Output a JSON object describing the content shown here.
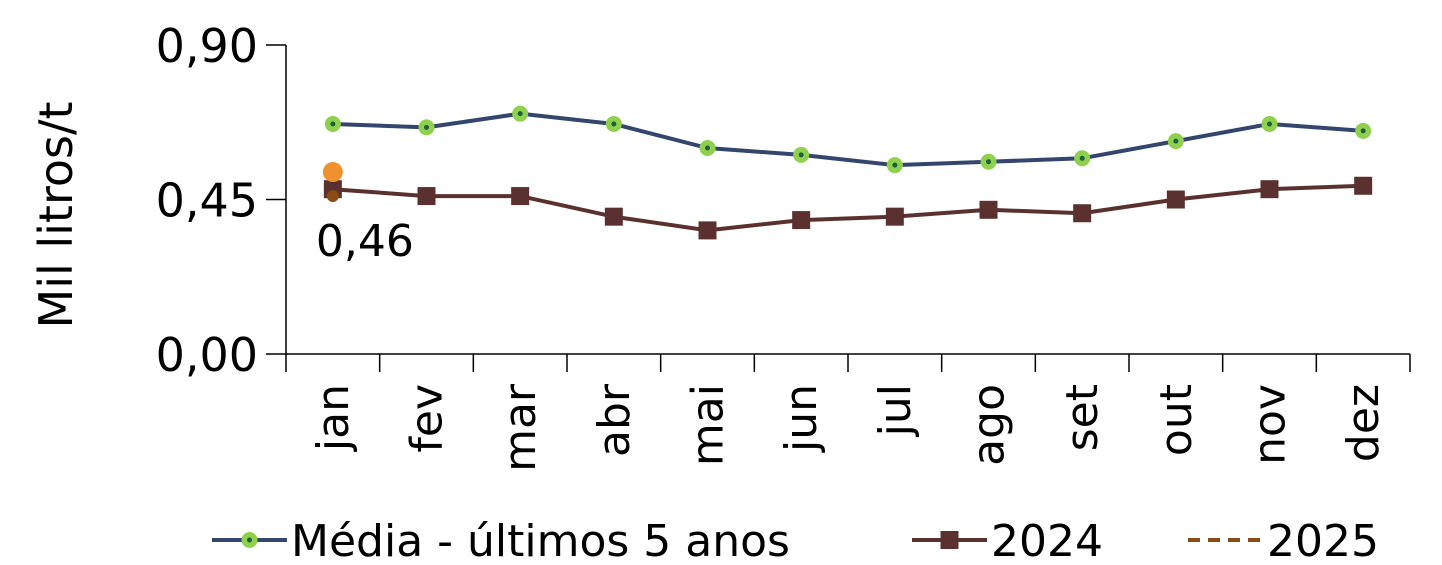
{
  "chart_data": {
    "type": "line",
    "ylabel": "Mil litros/t",
    "ylim": [
      0,
      0.9
    ],
    "y_ticks": [
      "0,00",
      "0,45",
      "0,90"
    ],
    "y_tick_values": [
      0,
      0.45,
      0.9
    ],
    "categories": [
      "jan",
      "fev",
      "mar",
      "abr",
      "mai",
      "jun",
      "jul",
      "ago",
      "set",
      "out",
      "nov",
      "dez"
    ],
    "series": [
      {
        "name": "Média - últimos 5 anos",
        "values": [
          0.67,
          0.66,
          0.7,
          0.67,
          0.6,
          0.58,
          0.55,
          0.56,
          0.57,
          0.62,
          0.67,
          0.65
        ],
        "color": "#34466e",
        "marker": "circle",
        "marker_color": "#8fd14f"
      },
      {
        "name": "2024",
        "values": [
          0.48,
          0.46,
          0.46,
          0.4,
          0.36,
          0.39,
          0.4,
          0.42,
          0.41,
          0.45,
          0.48,
          0.49
        ],
        "color": "#5b3130",
        "marker": "square"
      },
      {
        "name": "2025",
        "values": [
          0.46,
          null,
          null,
          null,
          null,
          null,
          null,
          null,
          null,
          null,
          null,
          null
        ],
        "color": "#8b4c14",
        "line_style": "dashed",
        "marker": "circle"
      }
    ],
    "extra_point": {
      "category": "jan",
      "value": 0.53,
      "color": "#f0902e"
    },
    "annotations": [
      {
        "text": "0,46",
        "category": "jan",
        "value": 0.46
      }
    ],
    "legend_position": "bottom",
    "grid": false
  }
}
